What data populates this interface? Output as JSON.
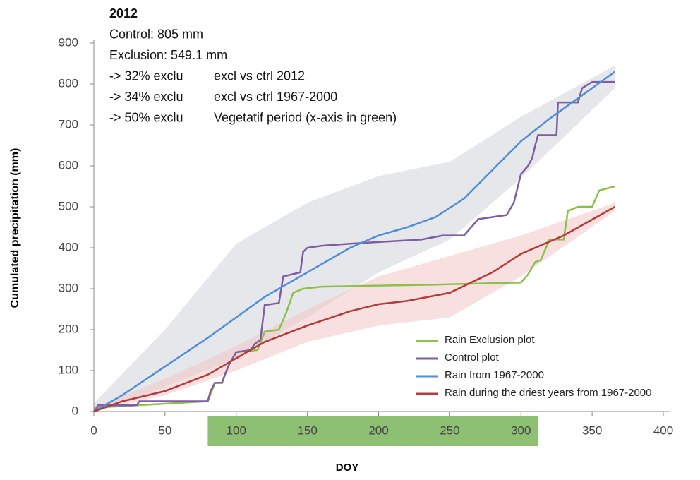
{
  "chart_data": {
    "type": "line",
    "annotations": [
      [
        "2012"
      ],
      [
        "Control: 805 mm"
      ],
      [
        "Exclusion: 549.1 mm"
      ],
      [
        "-> 32% exclu",
        "excl vs ctrl 2012"
      ],
      [
        "-> 34% exclu",
        "excl vs ctrl 1967-2000"
      ],
      [
        "-> 50% exclu",
        "Vegetatif period (x-axis in green)"
      ]
    ],
    "x_label": "DOY",
    "y_label": "Cumulated precipitation (mm)",
    "xlim": [
      0,
      400
    ],
    "xticks": [
      0,
      50,
      100,
      150,
      200,
      250,
      300,
      350,
      400
    ],
    "ylim": [
      0,
      900
    ],
    "yticks": [
      0,
      100,
      200,
      300,
      400,
      500,
      600,
      700,
      800,
      900
    ],
    "highlight": {
      "range": [
        80,
        312
      ],
      "color": "#7ab55c"
    },
    "series": [
      {
        "name": "Rain Exclusion plot",
        "color": "#8dc04a",
        "x": [
          0,
          3,
          30,
          80,
          85,
          90,
          95,
          100,
          115,
          120,
          130,
          135,
          137,
          140,
          147,
          160,
          240,
          300,
          305,
          310,
          314,
          320,
          330,
          333,
          340,
          350,
          355,
          366
        ],
        "values": [
          0,
          10,
          15,
          25,
          70,
          70,
          115,
          145,
          150,
          195,
          200,
          240,
          260,
          290,
          300,
          305,
          310,
          315,
          335,
          365,
          370,
          420,
          420,
          490,
          500,
          500,
          540,
          550
        ]
      },
      {
        "name": "Control plot",
        "color": "#7f5ca3",
        "x": [
          0,
          3,
          30,
          32,
          80,
          82,
          85,
          90,
          92,
          95,
          100,
          110,
          113,
          117,
          120,
          130,
          133,
          145,
          147,
          150,
          160,
          180,
          230,
          245,
          260,
          270,
          280,
          290,
          295,
          300,
          305,
          308,
          310,
          312,
          325,
          326,
          340,
          343,
          350,
          366
        ],
        "values": [
          0,
          15,
          15,
          25,
          25,
          50,
          70,
          70,
          90,
          115,
          145,
          150,
          165,
          175,
          260,
          265,
          330,
          340,
          390,
          400,
          405,
          410,
          420,
          430,
          430,
          470,
          475,
          480,
          510,
          580,
          600,
          620,
          650,
          675,
          675,
          755,
          755,
          790,
          805,
          805
        ]
      },
      {
        "name": "Rain from 1967-2000",
        "color": "#4f8fd6",
        "x": [
          0,
          20,
          50,
          80,
          100,
          120,
          150,
          180,
          200,
          220,
          240,
          260,
          280,
          300,
          320,
          340,
          366
        ],
        "values": [
          0,
          40,
          110,
          180,
          230,
          280,
          340,
          400,
          430,
          450,
          475,
          520,
          590,
          660,
          715,
          765,
          830
        ],
        "band": {
          "color": "#cfd3d8",
          "x": [
            0,
            50,
            100,
            150,
            200,
            250,
            300,
            366
          ],
          "lower": [
            0,
            60,
            130,
            230,
            340,
            420,
            570,
            790
          ],
          "upper": [
            20,
            200,
            410,
            510,
            575,
            610,
            720,
            845
          ]
        }
      },
      {
        "name": "Rain during the driest years from 1967-2000",
        "color": "#b53a3a",
        "x": [
          0,
          20,
          50,
          80,
          100,
          120,
          150,
          180,
          200,
          220,
          250,
          280,
          300,
          330,
          366
        ],
        "values": [
          0,
          25,
          50,
          90,
          130,
          170,
          210,
          245,
          262,
          270,
          290,
          340,
          385,
          430,
          500
        ],
        "band": {
          "color": "#f2c6c6",
          "x": [
            0,
            50,
            100,
            150,
            200,
            250,
            300,
            366
          ],
          "lower": [
            0,
            40,
            100,
            170,
            210,
            230,
            330,
            490
          ],
          "upper": [
            10,
            80,
            160,
            250,
            330,
            380,
            430,
            510
          ]
        }
      }
    ],
    "legend": "lower right"
  }
}
